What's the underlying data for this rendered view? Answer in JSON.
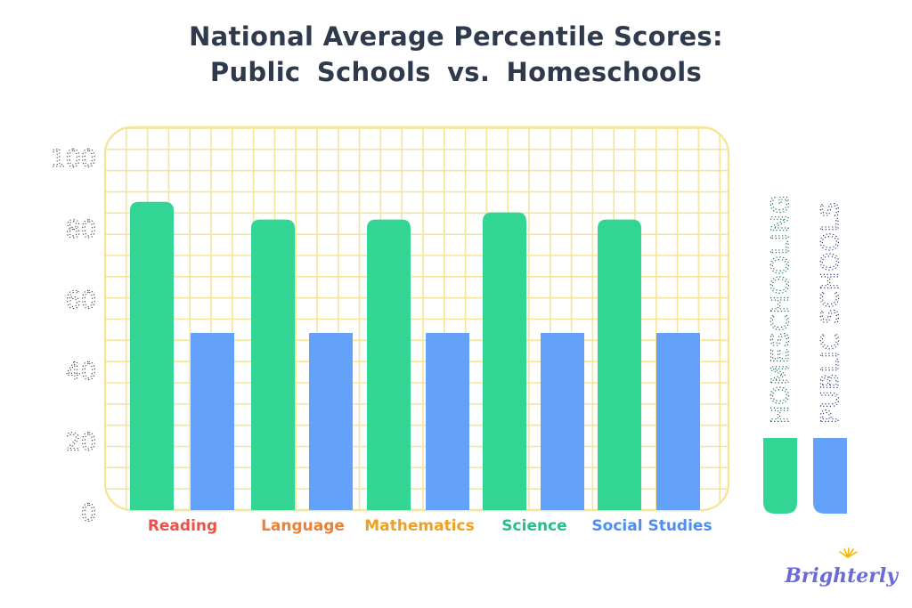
{
  "title_line1": "National Average Percentile Scores:",
  "title_line2": "Public Schools vs. Homeschools",
  "logo_text": "Brighterly",
  "colors": {
    "homeschooling": "#33d595",
    "public_schools": "#63a1fa",
    "grid": "#f5e59a",
    "title": "#2f3a4c"
  },
  "category_colors": [
    "#ec5148",
    "#f0802f",
    "#f0a020",
    "#22c186",
    "#4d8ef5"
  ],
  "chart_data": {
    "type": "bar",
    "categories": [
      "Reading",
      "Language",
      "Mathematics",
      "Science",
      "Social Studies"
    ],
    "series": [
      {
        "name": "HOMESCHOOLING",
        "values": [
          87,
          82,
          82,
          84,
          82
        ]
      },
      {
        "name": "PUBLIC SCHOOLS",
        "values": [
          50,
          50,
          50,
          50,
          50
        ]
      }
    ],
    "yticks": [
      "0",
      "20",
      "40",
      "60",
      "80",
      "100"
    ],
    "ylim": [
      0,
      105
    ],
    "grid": true,
    "legend_position": "right"
  }
}
